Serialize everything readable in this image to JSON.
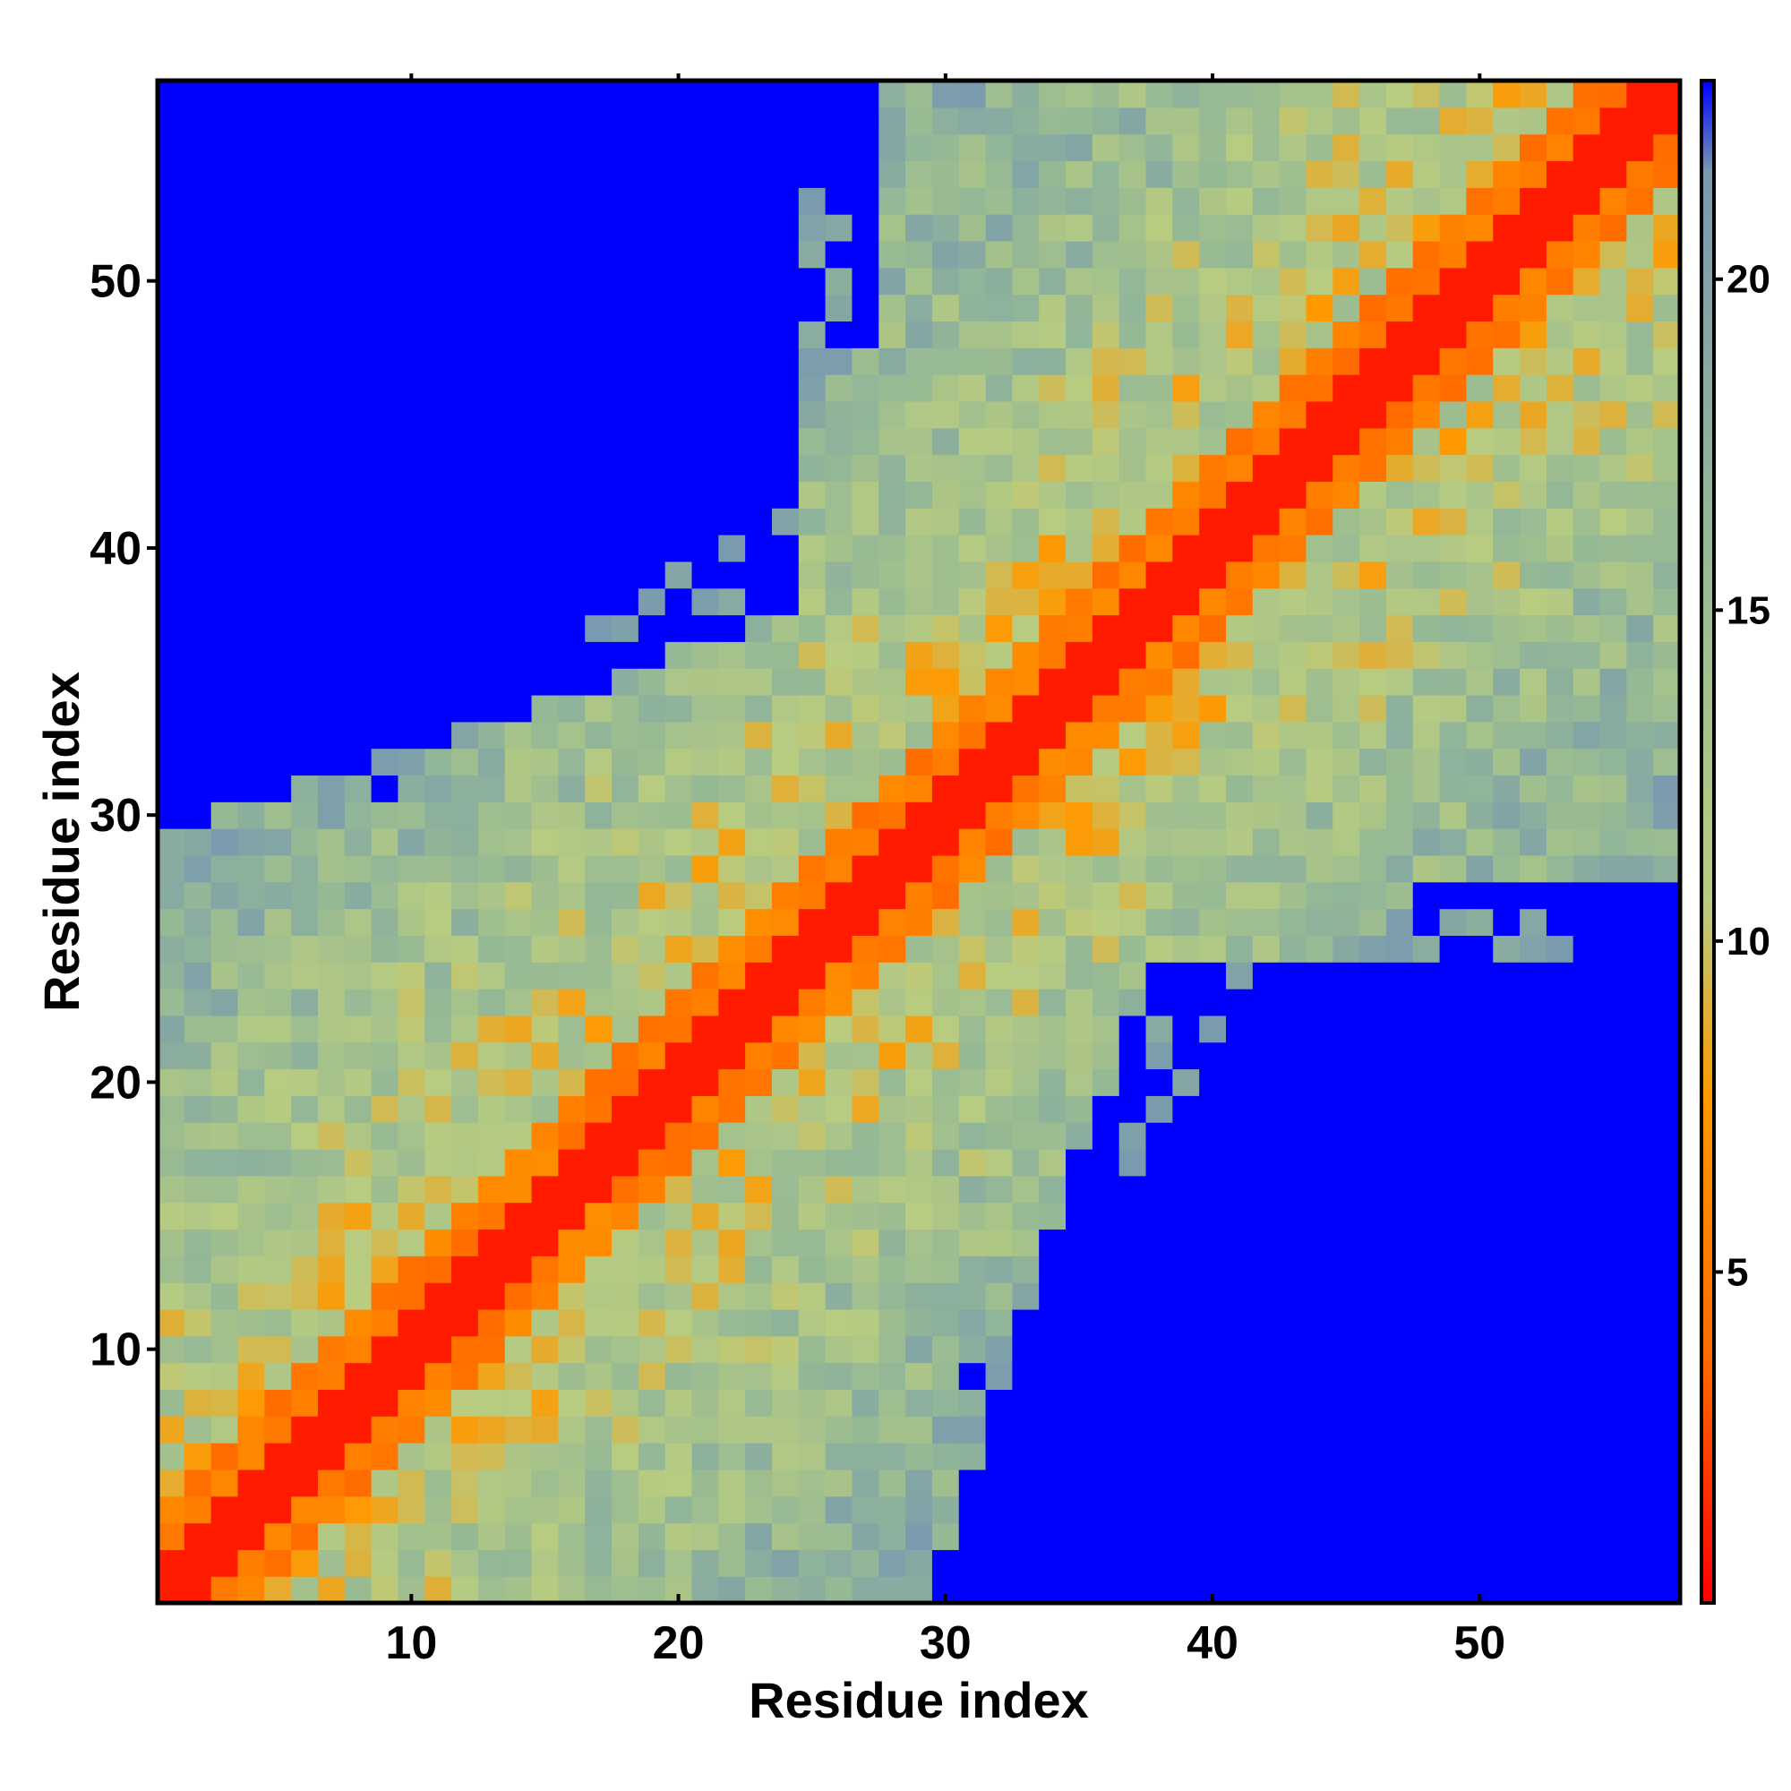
{
  "chart_data": {
    "type": "heatmap",
    "title": "",
    "xlabel": "Residue index",
    "ylabel": "Residue index",
    "n_residues": 57,
    "xlim": [
      0.5,
      57.5
    ],
    "ylim": [
      0.5,
      57.5
    ],
    "x_ticks": [
      10,
      20,
      30,
      40,
      50
    ],
    "y_ticks": [
      10,
      20,
      30,
      40,
      50
    ],
    "colorbar": {
      "range": [
        0,
        23
      ],
      "ticks": [
        5,
        10,
        15,
        20
      ],
      "cutoff": 23,
      "colors": [
        "#ff0000",
        "#ff6a00",
        "#ff9900",
        "#b8cc80",
        "#94b896",
        "#7899b0",
        "#0000ff"
      ],
      "stops": [
        0,
        0.16,
        0.33,
        0.46,
        0.7,
        0.94,
        1.0
      ]
    },
    "distance_model": {
      "description": "Symmetric residue-residue distance map; diagonal near 0, cells beyond cutoff shown blue",
      "diagonal_band_width": 1,
      "max_shown_distance": 23
    },
    "grid": false,
    "legend": "colorbar-right"
  }
}
